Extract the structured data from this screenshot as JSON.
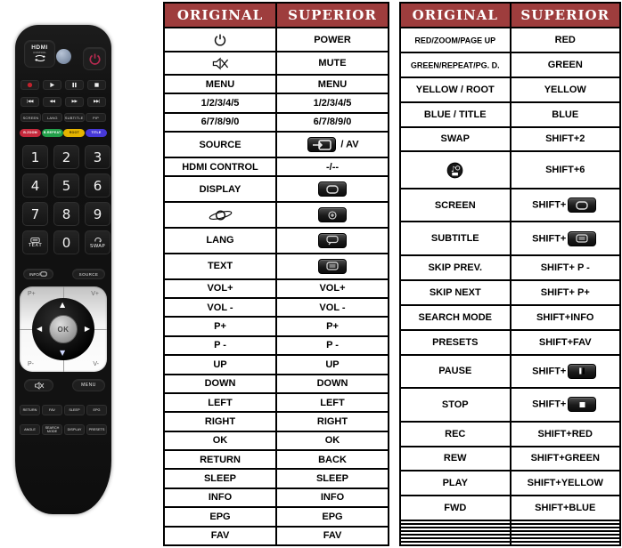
{
  "colors": {
    "header_bg": "#9e3d3d",
    "header_text": "#ffffff",
    "table_border": "#000000",
    "remote_body": "#141414",
    "red": "#c5293c",
    "green": "#22a04a",
    "yellow": "#e5b400",
    "blue": "#4638d8",
    "power_glyph": "#b52a50",
    "led": "#8e9cb0"
  },
  "tables": [
    {
      "name": "main-functions",
      "headers": {
        "original": "ORIGINAL",
        "superior": "SUPERIOR"
      },
      "rows": [
        {
          "original": {
            "icon": "power"
          },
          "superior": {
            "text": "POWER"
          }
        },
        {
          "original": {
            "icon": "mute"
          },
          "superior": {
            "text": "MUTE"
          }
        },
        {
          "original": {
            "text": "MENU"
          },
          "superior": {
            "text": "MENU"
          }
        },
        {
          "original": {
            "text": "1/2/3/4/5"
          },
          "superior": {
            "text": "1/2/3/4/5"
          }
        },
        {
          "original": {
            "text": "6/7/8/9/0"
          },
          "superior": {
            "text": "6/7/8/9/0"
          }
        },
        {
          "original": {
            "text": "SOURCE"
          },
          "superior": {
            "icon": "source-btn",
            "suffix": " / AV"
          }
        },
        {
          "original": {
            "text": "HDMI CONTROL"
          },
          "superior": {
            "text": "-/--"
          }
        },
        {
          "original": {
            "text": "DISPLAY"
          },
          "superior": {
            "icon": "display-btn"
          }
        },
        {
          "original": {
            "icon": "planet"
          },
          "superior": {
            "icon": "zoom-btn"
          }
        },
        {
          "original": {
            "text": "LANG"
          },
          "superior": {
            "icon": "lang-btn"
          }
        },
        {
          "original": {
            "text": "TEXT"
          },
          "superior": {
            "icon": "text-btn"
          }
        },
        {
          "original": {
            "text": "VOL+"
          },
          "superior": {
            "text": "VOL+"
          }
        },
        {
          "original": {
            "text": "VOL -"
          },
          "superior": {
            "text": "VOL -"
          }
        },
        {
          "original": {
            "text": "P+"
          },
          "superior": {
            "text": "P+"
          }
        },
        {
          "original": {
            "text": "P -"
          },
          "superior": {
            "text": "P -"
          }
        },
        {
          "original": {
            "text": "UP"
          },
          "superior": {
            "text": "UP"
          }
        },
        {
          "original": {
            "text": "DOWN"
          },
          "superior": {
            "text": "DOWN"
          }
        },
        {
          "original": {
            "text": "LEFT"
          },
          "superior": {
            "text": "LEFT"
          }
        },
        {
          "original": {
            "text": "RIGHT"
          },
          "superior": {
            "text": "RIGHT"
          }
        },
        {
          "original": {
            "text": "OK"
          },
          "superior": {
            "text": "OK"
          }
        },
        {
          "original": {
            "text": "RETURN"
          },
          "superior": {
            "text": "BACK"
          }
        },
        {
          "original": {
            "text": "SLEEP"
          },
          "superior": {
            "text": "SLEEP"
          }
        },
        {
          "original": {
            "text": "INFO"
          },
          "superior": {
            "text": "INFO"
          }
        },
        {
          "original": {
            "text": "EPG"
          },
          "superior": {
            "text": "EPG"
          }
        },
        {
          "original": {
            "text": "FAV"
          },
          "superior": {
            "text": "FAV"
          }
        }
      ]
    },
    {
      "name": "shift-functions",
      "headers": {
        "original": "ORIGINAL",
        "superior": "SUPERIOR"
      },
      "rows": [
        {
          "original": {
            "text": "RED/ZOOM/PAGE UP"
          },
          "superior": {
            "text": "RED"
          }
        },
        {
          "original": {
            "text": "GREEN/REPEAT/PG. D."
          },
          "superior": {
            "text": "GREEN"
          }
        },
        {
          "original": {
            "text": "YELLOW / ROOT"
          },
          "superior": {
            "text": "YELLOW"
          }
        },
        {
          "original": {
            "text": "BLUE / TITLE"
          },
          "superior": {
            "text": "BLUE"
          }
        },
        {
          "original": {
            "text": "SWAP"
          },
          "superior": {
            "text": "SHIFT+2"
          }
        },
        {
          "original": {
            "icon": "media"
          },
          "superior": {
            "text": "SHIFT+6"
          }
        },
        {
          "original": {
            "text": "SCREEN"
          },
          "superior": {
            "prefix": "SHIFT+",
            "icon": "display-btn"
          }
        },
        {
          "original": {
            "text": "SUBTITLE"
          },
          "superior": {
            "prefix": "SHIFT+",
            "icon": "text-btn"
          }
        },
        {
          "original": {
            "text": "SKIP PREV."
          },
          "superior": {
            "text": "SHIFT+ P -"
          }
        },
        {
          "original": {
            "text": "SKIP NEXT"
          },
          "superior": {
            "text": "SHIFT+ P+"
          }
        },
        {
          "original": {
            "text": "SEARCH MODE"
          },
          "superior": {
            "text": "SHIFT+INFO"
          }
        },
        {
          "original": {
            "text": "PRESETS"
          },
          "superior": {
            "text": "SHIFT+FAV"
          }
        },
        {
          "original": {
            "text": "PAUSE"
          },
          "superior": {
            "prefix": "SHIFT+",
            "icon": "pause-btn"
          }
        },
        {
          "original": {
            "text": "STOP"
          },
          "superior": {
            "prefix": "SHIFT+",
            "icon": "stop-btn"
          }
        },
        {
          "original": {
            "text": "REC"
          },
          "superior": {
            "text": "SHIFT+RED"
          }
        },
        {
          "original": {
            "text": "REW"
          },
          "superior": {
            "text": "SHIFT+GREEN"
          }
        },
        {
          "original": {
            "text": "PLAY"
          },
          "superior": {
            "text": "SHIFT+YELLOW"
          }
        },
        {
          "original": {
            "text": "FWD"
          },
          "superior": {
            "text": "SHIFT+BLUE"
          }
        },
        {
          "original": {},
          "superior": {}
        },
        {
          "original": {},
          "superior": {}
        },
        {
          "original": {},
          "superior": {}
        },
        {
          "original": {},
          "superior": {}
        },
        {
          "original": {},
          "superior": {}
        },
        {
          "original": {},
          "superior": {}
        },
        {
          "original": {},
          "superior": {}
        }
      ]
    }
  ],
  "remote": {
    "hdmi_label": "HDMI",
    "hdmi_sub": "CONTROL",
    "transport_row": [
      "record",
      "play",
      "pause",
      "stop"
    ],
    "skip_row": [
      {
        "name": "skip-prev",
        "glyph": "|◀◀"
      },
      {
        "name": "rewind",
        "glyph": "◀◀"
      },
      {
        "name": "fast-forward",
        "glyph": "▶▶"
      },
      {
        "name": "skip-next",
        "glyph": "▶▶|"
      }
    ],
    "function_row": [
      "SCREEN",
      "LANG",
      "SUBTITLE",
      "PIP"
    ],
    "color_row": [
      {
        "label": "B.ZOOM",
        "color": "#c5293c",
        "text_color": "#ffffff"
      },
      {
        "label": "B.REPEAT",
        "color": "#22a04a",
        "text_color": "#ffffff"
      },
      {
        "label": "ROOT",
        "color": "#e5b400",
        "text_color": "#3a2f00"
      },
      {
        "label": "TITLE",
        "color": "#4638d8",
        "text_color": "#ffffff"
      }
    ],
    "keys": [
      "1",
      "2",
      "3",
      "4",
      "5",
      "6",
      "7",
      "8",
      "9",
      "TEXT",
      "0",
      "SWAP"
    ],
    "info_label": "INFO/",
    "source_label": "SOURCE",
    "nav_corners": {
      "top_left": "P+",
      "top_right": "V+",
      "bottom_left": "P-",
      "bottom_right": "V-"
    },
    "dpad_arrows": {
      "up": "▲",
      "down": "▼",
      "left": "◀",
      "right": "▶"
    },
    "ok_label": "OK",
    "menu_label": "MENU",
    "bottom_row1": [
      "RETURN",
      "FAV",
      "SLEEP",
      "EPG"
    ],
    "bottom_row2": [
      "ANGLE",
      "SEARCH MODE",
      "DISPLAY",
      "PRESETS"
    ]
  }
}
